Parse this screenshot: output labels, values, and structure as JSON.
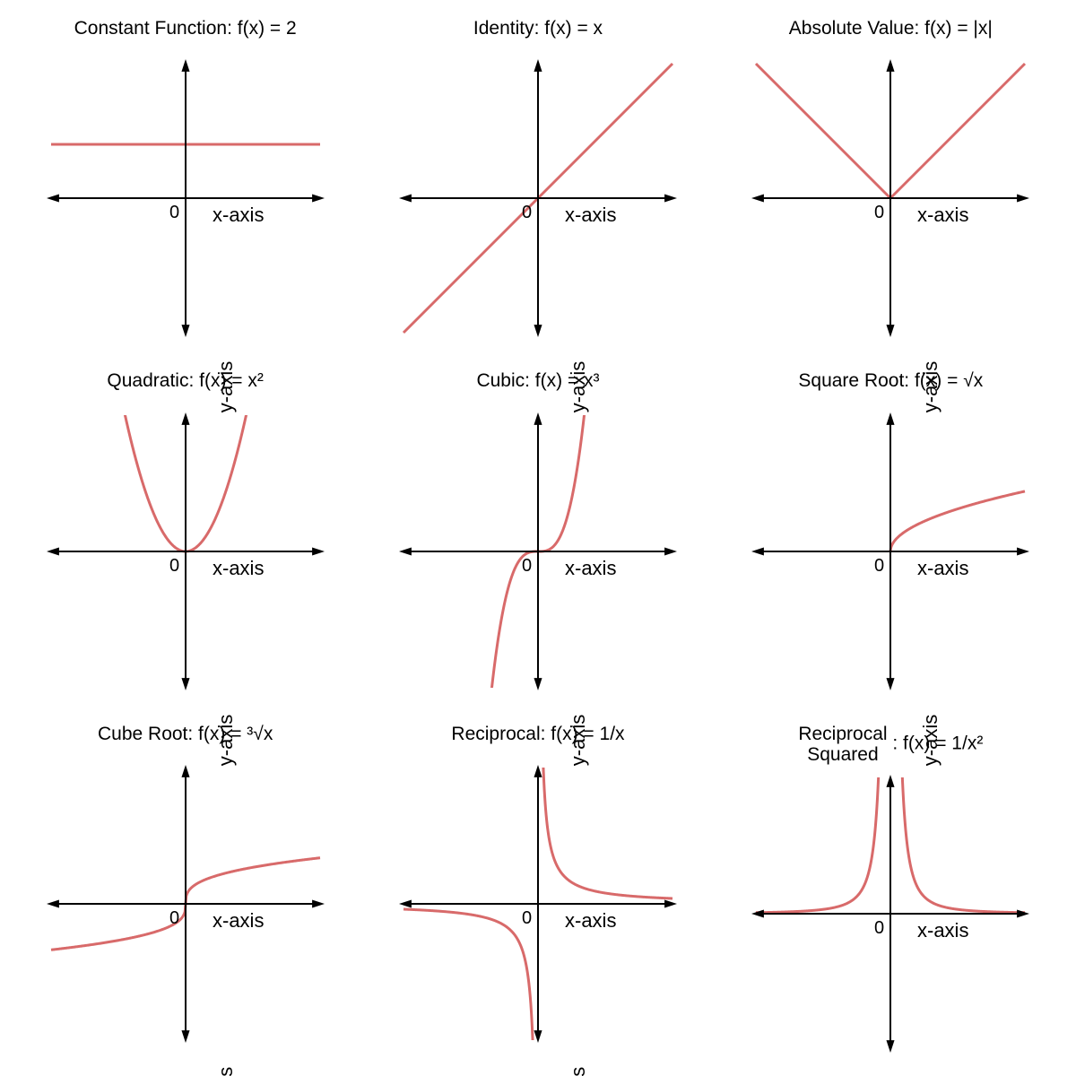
{
  "background_color": "#ffffff",
  "curve_color": "#d86a6a",
  "curve_width": 3,
  "axis_color": "#000000",
  "axis_width": 2,
  "arrow_size": 10,
  "title_fontsize": 21,
  "axis_label_fontsize": 22,
  "origin_label_fontsize": 20,
  "x_axis_label": "x-axis",
  "y_axis_label": "y-axis",
  "origin_label": "0",
  "plot_size": 300,
  "xlim": [
    -5,
    5
  ],
  "ylim": [
    -5,
    5
  ],
  "charts": [
    {
      "title": "Constant Function: f(x) = 2",
      "type": "line",
      "function": "constant",
      "constant_value": 2
    },
    {
      "title": "Identity: f(x) = x",
      "type": "line",
      "function": "identity"
    },
    {
      "title": "Absolute Value: f(x) = |x|",
      "type": "line",
      "function": "abs"
    },
    {
      "title": "Quadratic: f(x) = x²",
      "type": "line",
      "function": "square"
    },
    {
      "title": "Cubic: f(x) = x³",
      "type": "line",
      "function": "cube"
    },
    {
      "title": "Square Root: f(x) = √x",
      "type": "line",
      "function": "sqrt"
    },
    {
      "title": "Cube Root: f(x) = ³√x",
      "type": "line",
      "function": "cbrt"
    },
    {
      "title": "Reciprocal: f(x) = 1/x",
      "type": "line",
      "function": "reciprocal"
    },
    {
      "title_html": "Reciprocal<br>Squared",
      "title_suffix": " : f(x) = 1/x²",
      "title": "Reciprocal Squared : f(x) = 1/x²",
      "type": "line",
      "function": "reciprocal_squared"
    }
  ]
}
